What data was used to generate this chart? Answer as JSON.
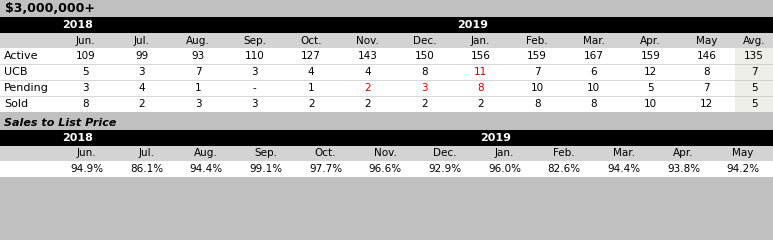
{
  "title": "$3,000,000+",
  "months": [
    "Jun.",
    "Jul.",
    "Aug.",
    "Sep.",
    "Oct.",
    "Nov.",
    "Dec.",
    "Jan.",
    "Feb.",
    "Mar.",
    "Apr.",
    "May"
  ],
  "avg_label": "Avg.",
  "rows": [
    {
      "label": "Active",
      "values": [
        "109",
        "99",
        "93",
        "110",
        "127",
        "143",
        "150",
        "156",
        "159",
        "167",
        "159",
        "146"
      ],
      "avg": "135",
      "red_cols": []
    },
    {
      "label": "UCB",
      "values": [
        "5",
        "3",
        "7",
        "3",
        "4",
        "4",
        "8",
        "11",
        "7",
        "6",
        "12",
        "8"
      ],
      "avg": "7",
      "red_cols": [
        7
      ]
    },
    {
      "label": "Pending",
      "values": [
        "3",
        "4",
        "1",
        "-",
        "1",
        "2",
        "3",
        "8",
        "10",
        "10",
        "5",
        "7"
      ],
      "avg": "5",
      "red_cols": [
        5,
        6,
        7
      ]
    },
    {
      "label": "Sold",
      "values": [
        "8",
        "2",
        "3",
        "3",
        "2",
        "2",
        "2",
        "2",
        "8",
        "8",
        "10",
        "12"
      ],
      "avg": "5",
      "red_cols": []
    }
  ],
  "slp_title": "Sales to List Price",
  "slp_months": [
    "Jun.",
    "Jul.",
    "Aug.",
    "Sep.",
    "Oct.",
    "Nov.",
    "Dec.",
    "Jan.",
    "Feb.",
    "Mar.",
    "Apr.",
    "May"
  ],
  "slp_values": [
    "94.9%",
    "86.1%",
    "94.4%",
    "99.1%",
    "97.7%",
    "96.6%",
    "92.9%",
    "96.0%",
    "82.6%",
    "94.4%",
    "93.8%",
    "94.2%"
  ],
  "bg_color": "#c0c0c0",
  "black_bg": "#000000",
  "white_fg": "#ffffff",
  "gray_header_bg": "#d3d3d3",
  "gray_header_fg": "#000000",
  "white_bg": "#ffffff",
  "black_fg": "#000000",
  "avg_bg": "#efefea",
  "red_fg": "#cc0000",
  "title_fontsize": 9,
  "year_fontsize": 8,
  "month_fontsize": 7.5,
  "data_fontsize": 7.5,
  "slp_title_fontsize": 8
}
